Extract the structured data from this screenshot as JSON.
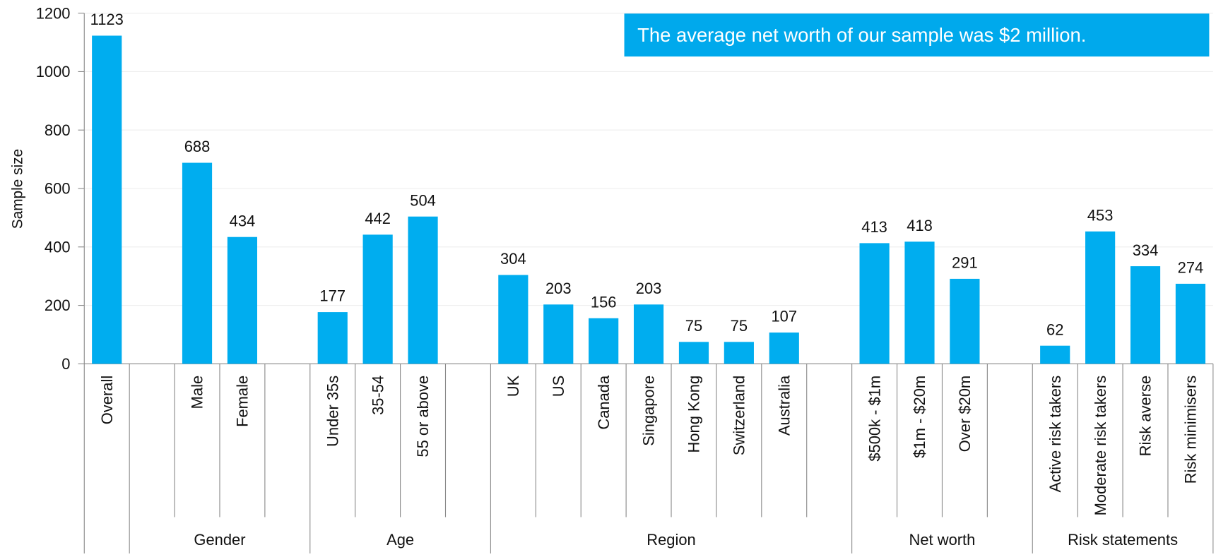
{
  "chart_data": {
    "type": "bar",
    "y_label": "Sample size",
    "annotation": "The average net worth of our sample was $2 million.",
    "categories": [
      "Overall",
      null,
      "Male",
      "Female",
      null,
      "Under 35s",
      "35-54",
      "55 or above",
      null,
      "UK",
      "US",
      "Canada",
      "Singapore",
      "Hong Kong",
      "Switzerland",
      "Australia",
      null,
      "$500k - $1m",
      "$1m - $20m",
      "Over $20m",
      null,
      "Active risk takers",
      "Moderate risk takers",
      "Risk averse",
      "Risk minimisers"
    ],
    "values": [
      1123,
      null,
      688,
      434,
      null,
      177,
      442,
      504,
      null,
      304,
      203,
      156,
      203,
      75,
      75,
      107,
      null,
      413,
      418,
      291,
      null,
      62,
      453,
      334,
      274
    ],
    "groups": [
      {
        "label": null,
        "size": 1
      },
      {
        "label": "Gender",
        "size": 4
      },
      {
        "label": "Age",
        "size": 4
      },
      {
        "label": "Region",
        "size": 8
      },
      {
        "label": "Net worth",
        "size": 4
      },
      {
        "label": "Risk statements",
        "size": 4
      }
    ],
    "color": "#00adef",
    "ylim": [
      0,
      1200
    ],
    "yticks": [
      0,
      200,
      400,
      600,
      800,
      1000,
      1200
    ],
    "grid": true
  }
}
